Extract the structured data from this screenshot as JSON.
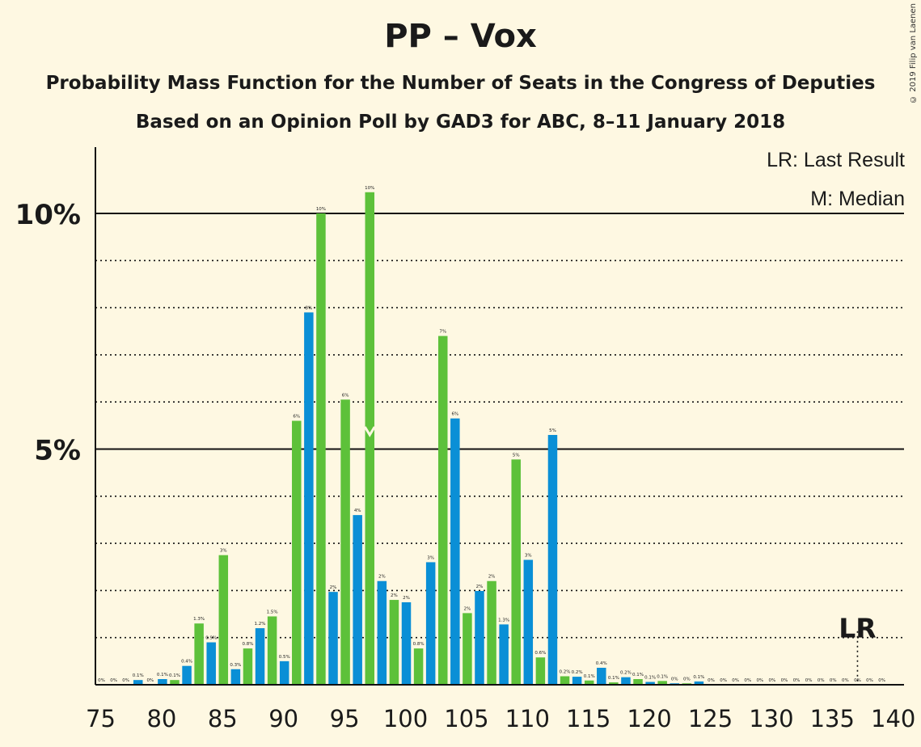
{
  "chart_data": {
    "type": "bar",
    "title": "PP – Vox",
    "subtitle": "Probability Mass Function for the Number of Seats in the Congress of Deputies",
    "subtitle2": "Based on an Opinion Poll by GAD3 for ABC, 8–11 January 2018",
    "copyright": "© 2019 Filip van Laenen",
    "legend": [
      "LR: Last Result",
      "M: Median"
    ],
    "lr_label": "LR",
    "last_result": 137,
    "median": 97,
    "xlim": [
      75,
      140
    ],
    "ylim": [
      0,
      11
    ],
    "x_ticks": [
      "75",
      "80",
      "85",
      "90",
      "95",
      "100",
      "105",
      "110",
      "115",
      "120",
      "125",
      "130",
      "135",
      "140"
    ],
    "y_ticks": [
      "5%",
      "10%"
    ],
    "x": [
      75,
      76,
      77,
      78,
      79,
      80,
      81,
      82,
      83,
      84,
      85,
      86,
      87,
      88,
      89,
      90,
      91,
      92,
      93,
      94,
      95,
      96,
      97,
      98,
      99,
      100,
      101,
      102,
      103,
      104,
      105,
      106,
      107,
      108,
      109,
      110,
      111,
      112,
      113,
      114,
      115,
      116,
      117,
      118,
      119,
      120,
      121,
      122,
      123,
      124,
      125,
      126,
      127,
      128,
      129,
      130,
      131,
      132,
      133,
      134,
      135,
      136,
      137,
      138,
      139
    ],
    "values": [
      0,
      0,
      0,
      0.1,
      0,
      0.12,
      0.1,
      0.4,
      1.3,
      0.9,
      2.75,
      0.33,
      0.77,
      1.2,
      1.45,
      0.5,
      5.6,
      7.9,
      10.0,
      1.97,
      6.05,
      3.6,
      10.45,
      2.2,
      1.8,
      1.75,
      0.77,
      2.6,
      7.4,
      5.65,
      1.52,
      1.99,
      2.2,
      1.28,
      4.78,
      2.65,
      0.58,
      5.3,
      0.18,
      0.17,
      0.09,
      0.36,
      0.05,
      0.16,
      0.12,
      0.06,
      0.08,
      0.03,
      0.03,
      0.07,
      0,
      0,
      0,
      0,
      0,
      0,
      0,
      0,
      0,
      0,
      0,
      0,
      0,
      0,
      0
    ],
    "labels": [
      "0%",
      "0%",
      "0%",
      "0.1%",
      "0%",
      "0.1%",
      "0.1%",
      "0.4%",
      "1.3%",
      "0.9%",
      "3%",
      "0.3%",
      "0.8%",
      "1.2%",
      "1.5%",
      "0.5%",
      "6%",
      "8%",
      "10%",
      "2%",
      "6%",
      "4%",
      "10%",
      "2%",
      "2%",
      "2%",
      "0.8%",
      "3%",
      "7%",
      "6%",
      "2%",
      "2%",
      "2%",
      "1.3%",
      "5%",
      "3%",
      "0.6%",
      "5%",
      "0.2%",
      "0.2%",
      "0.1%",
      "0.4%",
      "0.1%",
      "0.2%",
      "0.1%",
      "0.1%",
      "0.1%",
      "0%",
      "0%",
      "0.1%",
      "0%",
      "0%",
      "0%",
      "0%",
      "0%",
      "0%",
      "0%",
      "0%",
      "0%",
      "0%",
      "0%",
      "0%",
      "0%",
      "0%",
      "0%"
    ],
    "colors": {
      "odd": "#5DC13A",
      "even": "#0A8FD6",
      "background": "#FEF8E2"
    }
  }
}
